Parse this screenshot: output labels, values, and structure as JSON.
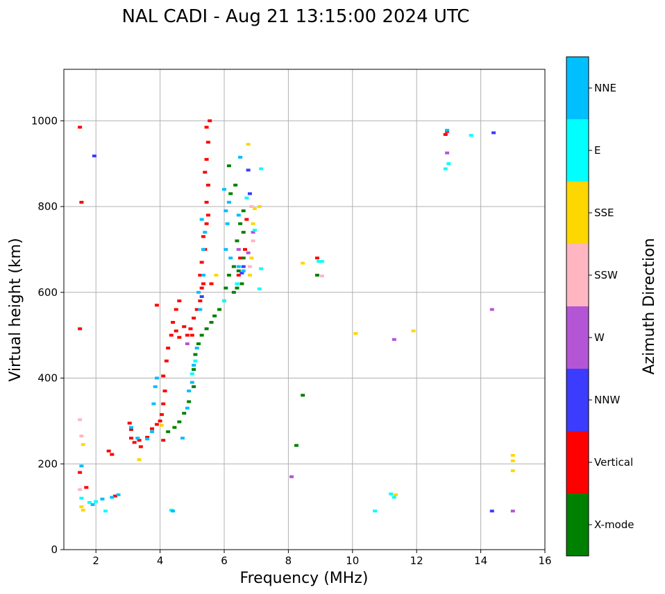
{
  "chart_data": {
    "type": "scatter",
    "title": "NAL CADI - Aug 21 13:15:00 2024 UTC",
    "xlabel": "Frequency (MHz)",
    "ylabel": "Virtual height (km)",
    "xlim": [
      1,
      16
    ],
    "ylim": [
      0,
      1120
    ],
    "xticks": [
      2,
      4,
      6,
      8,
      10,
      12,
      14,
      16
    ],
    "yticks": [
      0,
      200,
      400,
      600,
      800,
      1000
    ],
    "grid": true,
    "colorbar": {
      "label": "Azimuth Direction",
      "categories": [
        {
          "name": "X-mode",
          "color": "#008000"
        },
        {
          "name": "Vertical",
          "color": "#ff0000"
        },
        {
          "name": "NNW",
          "color": "#3c3cff"
        },
        {
          "name": "W",
          "color": "#b455d6"
        },
        {
          "name": "SSW",
          "color": "#ffb6c1"
        },
        {
          "name": "SSE",
          "color": "#ffd700"
        },
        {
          "name": "E",
          "color": "#00ffff"
        },
        {
          "name": "NNE",
          "color": "#00bfff"
        }
      ]
    },
    "series": [
      {
        "name": "X-mode",
        "color": "#008000",
        "points": [
          [
            4.25,
            275
          ],
          [
            4.45,
            285
          ],
          [
            4.6,
            298
          ],
          [
            4.75,
            318
          ],
          [
            4.9,
            345
          ],
          [
            5.05,
            380
          ],
          [
            5.05,
            420
          ],
          [
            5.1,
            455
          ],
          [
            5.2,
            480
          ],
          [
            5.3,
            500
          ],
          [
            5.45,
            515
          ],
          [
            5.6,
            530
          ],
          [
            5.7,
            545
          ],
          [
            5.85,
            560
          ],
          [
            6.0,
            580
          ],
          [
            6.05,
            610
          ],
          [
            6.15,
            640
          ],
          [
            6.3,
            660
          ],
          [
            6.45,
            650
          ],
          [
            6.55,
            620
          ],
          [
            6.6,
            680
          ],
          [
            6.4,
            720
          ],
          [
            6.5,
            760
          ],
          [
            6.6,
            790
          ],
          [
            6.2,
            830
          ],
          [
            6.35,
            850
          ],
          [
            6.15,
            895
          ],
          [
            6.6,
            740
          ],
          [
            6.4,
            610
          ],
          [
            6.3,
            600
          ],
          [
            8.45,
            360
          ],
          [
            8.25,
            243
          ],
          [
            8.9,
            640
          ]
        ]
      },
      {
        "name": "Vertical",
        "color": "#ff0000",
        "points": [
          [
            1.5,
            985
          ],
          [
            1.55,
            810
          ],
          [
            1.5,
            515
          ],
          [
            1.5,
            180
          ],
          [
            1.7,
            145
          ],
          [
            2.4,
            230
          ],
          [
            2.5,
            222
          ],
          [
            2.6,
            125
          ],
          [
            3.05,
            295
          ],
          [
            3.1,
            280
          ],
          [
            3.1,
            260
          ],
          [
            3.2,
            250
          ],
          [
            3.35,
            255
          ],
          [
            3.4,
            240
          ],
          [
            3.6,
            262
          ],
          [
            3.75,
            282
          ],
          [
            3.9,
            292
          ],
          [
            4.0,
            300
          ],
          [
            4.05,
            315
          ],
          [
            4.1,
            340
          ],
          [
            4.15,
            370
          ],
          [
            4.1,
            405
          ],
          [
            4.2,
            440
          ],
          [
            4.25,
            470
          ],
          [
            4.35,
            500
          ],
          [
            4.4,
            530
          ],
          [
            4.5,
            560
          ],
          [
            4.6,
            580
          ],
          [
            4.75,
            520
          ],
          [
            4.85,
            500
          ],
          [
            4.95,
            515
          ],
          [
            5.05,
            540
          ],
          [
            5.15,
            560
          ],
          [
            5.25,
            580
          ],
          [
            5.3,
            610
          ],
          [
            5.25,
            640
          ],
          [
            5.3,
            670
          ],
          [
            5.4,
            700
          ],
          [
            5.35,
            730
          ],
          [
            5.45,
            760
          ],
          [
            5.5,
            780
          ],
          [
            5.45,
            810
          ],
          [
            5.5,
            850
          ],
          [
            5.4,
            880
          ],
          [
            5.45,
            910
          ],
          [
            5.5,
            950
          ],
          [
            5.45,
            985
          ],
          [
            5.55,
            1000
          ],
          [
            5.6,
            620
          ],
          [
            5.35,
            620
          ],
          [
            4.5,
            510
          ],
          [
            4.6,
            495
          ],
          [
            5.0,
            500
          ],
          [
            3.9,
            570
          ],
          [
            4.1,
            255
          ],
          [
            6.45,
            640
          ],
          [
            6.65,
            700
          ],
          [
            6.5,
            680
          ],
          [
            6.7,
            770
          ],
          [
            12.95,
            975
          ],
          [
            12.9,
            968
          ],
          [
            8.9,
            680
          ]
        ]
      },
      {
        "name": "NNW",
        "color": "#3c3cff",
        "points": [
          [
            1.95,
            918
          ],
          [
            6.75,
            885
          ],
          [
            6.6,
            660
          ],
          [
            6.55,
            645
          ],
          [
            6.8,
            830
          ],
          [
            14.4,
            972
          ],
          [
            14.35,
            90
          ],
          [
            5.3,
            590
          ]
        ]
      },
      {
        "name": "W",
        "color": "#b455d6",
        "points": [
          [
            6.9,
            740
          ],
          [
            6.75,
            692
          ],
          [
            6.45,
            700
          ],
          [
            11.3,
            490
          ],
          [
            14.35,
            560
          ],
          [
            12.95,
            925
          ],
          [
            15.0,
            90
          ],
          [
            8.1,
            170
          ],
          [
            4.85,
            480
          ]
        ]
      },
      {
        "name": "SSW",
        "color": "#ffb6c1",
        "points": [
          [
            1.5,
            303
          ],
          [
            1.55,
            265
          ],
          [
            1.5,
            140
          ],
          [
            9.05,
            638
          ],
          [
            6.85,
            800
          ],
          [
            6.8,
            660
          ],
          [
            6.9,
            720
          ]
        ]
      },
      {
        "name": "SSE",
        "color": "#ffd700",
        "points": [
          [
            1.6,
            245
          ],
          [
            1.55,
            100
          ],
          [
            1.6,
            92
          ],
          [
            3.35,
            210
          ],
          [
            4.05,
            290
          ],
          [
            5.75,
            640
          ],
          [
            6.75,
            945
          ],
          [
            6.9,
            760
          ],
          [
            6.85,
            680
          ],
          [
            6.8,
            640
          ],
          [
            7.1,
            800
          ],
          [
            6.95,
            795
          ],
          [
            8.45,
            668
          ],
          [
            10.1,
            504
          ],
          [
            11.9,
            510
          ],
          [
            15.0,
            220
          ],
          [
            15.0,
            207
          ],
          [
            15.0,
            184
          ],
          [
            11.35,
            128
          ]
        ]
      },
      {
        "name": "E",
        "color": "#00ffff",
        "points": [
          [
            1.55,
            120
          ],
          [
            1.8,
            110
          ],
          [
            2.0,
            112
          ],
          [
            2.3,
            90
          ],
          [
            4.35,
            92
          ],
          [
            5.1,
            440
          ],
          [
            5.0,
            410
          ],
          [
            6.0,
            580
          ],
          [
            6.4,
            620
          ],
          [
            7.15,
            888
          ],
          [
            7.15,
            655
          ],
          [
            7.1,
            608
          ],
          [
            6.7,
            820
          ],
          [
            8.95,
            672
          ],
          [
            9.05,
            672
          ],
          [
            13.0,
            900
          ],
          [
            12.9,
            888
          ],
          [
            13.7,
            966
          ],
          [
            10.7,
            90
          ],
          [
            11.2,
            130
          ],
          [
            11.3,
            122
          ],
          [
            6.95,
            745
          ]
        ]
      },
      {
        "name": "NNE",
        "color": "#00bfff",
        "points": [
          [
            1.55,
            195
          ],
          [
            1.9,
            105
          ],
          [
            2.2,
            118
          ],
          [
            2.5,
            122
          ],
          [
            2.7,
            128
          ],
          [
            3.1,
            285
          ],
          [
            3.3,
            260
          ],
          [
            3.6,
            258
          ],
          [
            3.75,
            275
          ],
          [
            3.8,
            340
          ],
          [
            3.85,
            380
          ],
          [
            3.9,
            400
          ],
          [
            4.7,
            260
          ],
          [
            4.85,
            330
          ],
          [
            4.9,
            370
          ],
          [
            5.0,
            390
          ],
          [
            5.05,
            430
          ],
          [
            5.15,
            470
          ],
          [
            5.25,
            560
          ],
          [
            5.2,
            600
          ],
          [
            5.35,
            700
          ],
          [
            5.3,
            770
          ],
          [
            6.0,
            840
          ],
          [
            6.15,
            810
          ],
          [
            6.05,
            790
          ],
          [
            6.1,
            760
          ],
          [
            6.05,
            700
          ],
          [
            6.2,
            680
          ],
          [
            6.5,
            915
          ],
          [
            6.45,
            780
          ],
          [
            6.45,
            660
          ],
          [
            6.6,
            650
          ],
          [
            12.95,
            978
          ],
          [
            4.4,
            90
          ],
          [
            5.35,
            640
          ],
          [
            5.4,
            740
          ]
        ]
      }
    ]
  }
}
